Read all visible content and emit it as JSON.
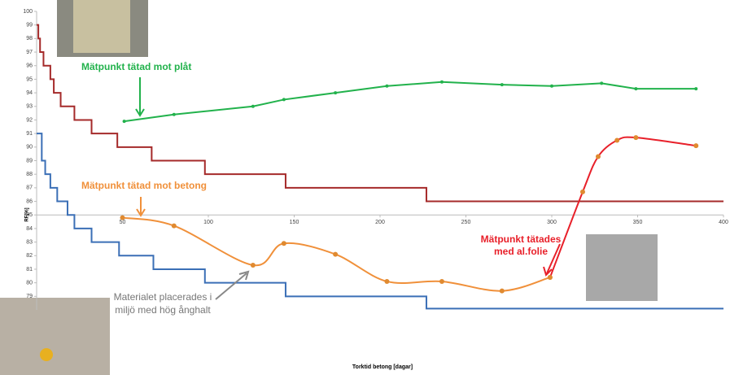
{
  "chart_data": {
    "type": "line",
    "x_label": "Torktid betong [dagar]",
    "y_label": "RF[%]",
    "xlim": [
      0,
      400
    ],
    "ylim": [
      78,
      100
    ],
    "xticks": [
      50,
      100,
      150,
      200,
      250,
      300,
      350,
      400
    ],
    "yticks": [
      79,
      80,
      81,
      82,
      83,
      84,
      85,
      86,
      87,
      88,
      89,
      90,
      91,
      92,
      93,
      94,
      95,
      96,
      97,
      98,
      99,
      100
    ],
    "annotation": [
      "Materialet placerades i",
      "miljö med hög ånghalt"
    ],
    "series": [
      {
        "color": "#a52a2a",
        "step": true,
        "x": [
          0,
          1,
          2,
          4,
          8,
          10,
          14,
          22,
          32,
          47,
          67,
          98,
          145,
          227,
          400
        ],
        "values": [
          99,
          98,
          97,
          96,
          95,
          94,
          93,
          92,
          91,
          90,
          89,
          88,
          87,
          86,
          86
        ]
      },
      {
        "color": "#3b6fb6",
        "step": true,
        "x": [
          0,
          3,
          5,
          8,
          12,
          18,
          22,
          32,
          48,
          68,
          98,
          145,
          227,
          400
        ],
        "values": [
          91,
          89,
          88,
          87,
          86,
          85,
          84,
          83,
          82,
          81,
          80,
          79,
          78.1,
          78.1
        ]
      },
      {
        "name": "Mätpunkt tätad mot plåt",
        "color": "#22b24c",
        "smooth": false,
        "x": [
          51,
          80,
          126,
          144,
          174,
          204,
          236,
          271,
          300,
          329,
          349,
          384
        ],
        "values": [
          91.9,
          92.4,
          93.0,
          93.5,
          94.0,
          94.5,
          94.8,
          94.6,
          94.5,
          94.7,
          94.3,
          94.3
        ]
      },
      {
        "name": "Mätpunkt tätad mot betong",
        "color": "#f0903a",
        "smooth": true,
        "x": [
          50,
          80,
          126,
          144,
          174,
          204,
          236,
          271,
          299
        ],
        "values": [
          84.8,
          84.2,
          81.3,
          82.9,
          82.1,
          80.1,
          80.1,
          79.4,
          80.4
        ]
      },
      {
        "name": [
          "Mätpunkt tätades",
          "med al.folie"
        ],
        "color": "#e8202a",
        "smooth": true,
        "x": [
          299,
          318,
          327,
          338,
          349,
          384
        ],
        "values": [
          80.4,
          86.7,
          89.3,
          90.5,
          90.7,
          90.1
        ]
      }
    ]
  }
}
